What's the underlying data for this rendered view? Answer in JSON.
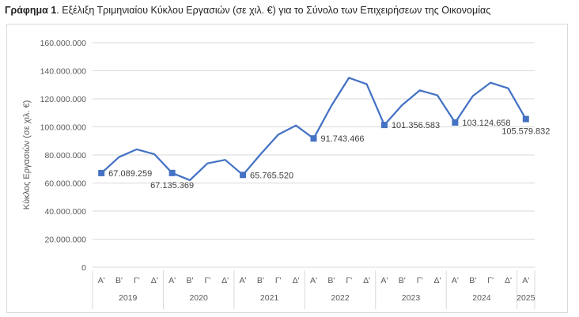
{
  "caption": {
    "bold": "Γράφημα 1",
    "rest": ". Εξέλιξη Τριμηνιαίου Κύκλου Εργασιών (σε χιλ. €) για το Σύνολο των Επιχειρήσεων της Οικονομίας"
  },
  "chart_data": {
    "type": "line",
    "ylabel": "Κύκλος Εργασιών (σε χιλ. €)",
    "ylim": [
      0,
      160000000
    ],
    "yticks": [
      0,
      20000000,
      40000000,
      60000000,
      80000000,
      100000000,
      120000000,
      140000000,
      160000000
    ],
    "ytick_labels": [
      "0",
      "20.000.000",
      "40.000.000",
      "60.000.000",
      "80.000.000",
      "100.000.000",
      "120.000.000",
      "140.000.000",
      "160.000.000"
    ],
    "grid": true,
    "quarters": [
      "Α'",
      "Β'",
      "Γ'",
      "Δ'",
      "Α'",
      "Β'",
      "Γ'",
      "Δ'",
      "Α'",
      "Β'",
      "Γ'",
      "Δ'",
      "Α'",
      "Β'",
      "Γ'",
      "Δ'",
      "Α'",
      "Β'",
      "Γ'",
      "Δ'",
      "Α'",
      "Β'",
      "Γ'",
      "Δ'",
      "Α'"
    ],
    "years": [
      {
        "label": "2019",
        "start": 0,
        "count": 4
      },
      {
        "label": "2020",
        "start": 4,
        "count": 4
      },
      {
        "label": "2021",
        "start": 8,
        "count": 4
      },
      {
        "label": "2022",
        "start": 12,
        "count": 4
      },
      {
        "label": "2023",
        "start": 16,
        "count": 4
      },
      {
        "label": "2024",
        "start": 20,
        "count": 4
      },
      {
        "label": "2025",
        "start": 24,
        "count": 1
      }
    ],
    "series": [
      {
        "color": "#4472c4",
        "values": [
          67089259,
          78500000,
          84000000,
          80500000,
          67135369,
          62000000,
          74000000,
          76500000,
          65765520,
          80500000,
          94500000,
          101000000,
          91743466,
          115000000,
          135000000,
          130500000,
          101356583,
          115500000,
          126000000,
          122500000,
          103124658,
          122000000,
          131500000,
          127500000,
          105579832
        ]
      }
    ],
    "markers": [
      {
        "index": 0,
        "label": "67.089.259",
        "pos": "right"
      },
      {
        "index": 4,
        "label": "67.135.369",
        "pos": "below"
      },
      {
        "index": 8,
        "label": "65.765.520",
        "pos": "right"
      },
      {
        "index": 12,
        "label": "91.743.466",
        "pos": "right"
      },
      {
        "index": 16,
        "label": "101.356.583",
        "pos": "right"
      },
      {
        "index": 20,
        "label": "103.124.658",
        "pos": "right"
      },
      {
        "index": 24,
        "label": "105.579.832",
        "pos": "below"
      }
    ]
  }
}
